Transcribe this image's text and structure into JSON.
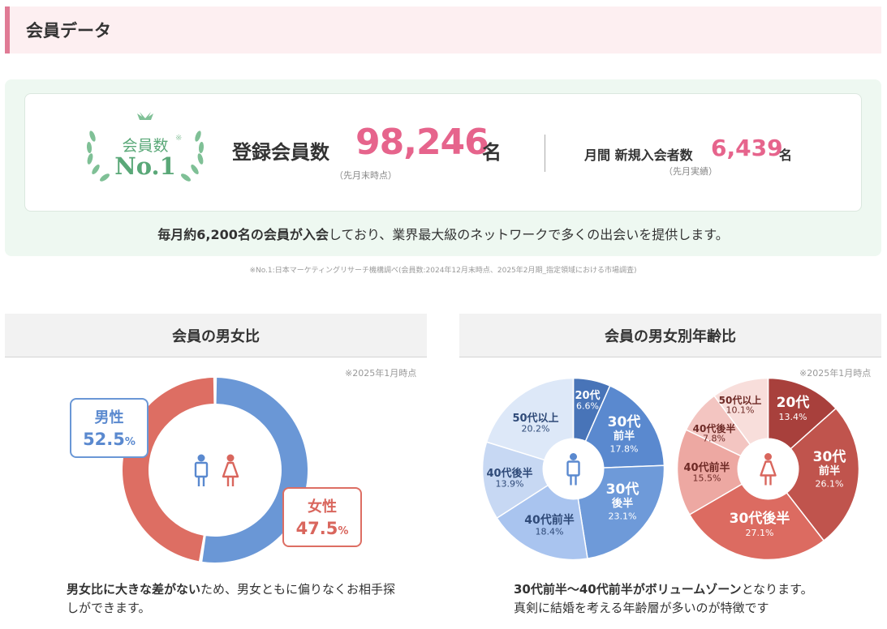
{
  "header": {
    "title": "会員データ"
  },
  "badge": {
    "top": "会員数",
    "main": "No.1",
    "mark": "※"
  },
  "registered": {
    "label": "登録会員数",
    "value": "98,246",
    "unit": "名",
    "note": "（先月末時点）"
  },
  "monthly_new": {
    "label": "月間 新規入会者数",
    "value": "6,439",
    "unit": "名",
    "note": "（先月実績）"
  },
  "summary": {
    "part1": "毎月約6,200名の会員が入会",
    "part2": "しており、業界最大級のネットワークで多くの出会いを提供します。"
  },
  "footnote": "※No.1:日本マーケティングリサーチ機構調べ(会員数:2024年12月末時点、2025年2月期_指定領域における市場調査)",
  "gender_panel": {
    "title": "会員の男女比",
    "as_of": "※2025年1月時点",
    "male_label": "男性",
    "male_value": "52.5",
    "male_unit": "%",
    "female_label": "女性",
    "female_value": "47.5",
    "female_unit": "%",
    "caption_bold": "男女比に大きな差がない",
    "caption_rest": "ため、男女ともに偏りなくお相手探しができます。"
  },
  "age_panel": {
    "title": "会員の男女別年齢比",
    "as_of": "※2025年1月時点",
    "caption_bold": "30代前半〜40代前半がボリュームゾーン",
    "caption_rest1": "となります。",
    "caption_line2": "真剣に結婚を考える年齢層が多いのが特徴です"
  },
  "colors": {
    "accent_pink": "#e6648c",
    "green": "#5aa878",
    "male": "#5a89cf",
    "female": "#d9665d"
  },
  "chart_data": [
    {
      "type": "pie",
      "title": "会員の男女比",
      "categories": [
        "男性",
        "女性"
      ],
      "values": [
        52.5,
        47.5
      ],
      "colors": [
        "#6a97d6",
        "#dd6e63"
      ],
      "style": "donut"
    },
    {
      "type": "pie",
      "title": "男性",
      "categories": [
        "20代",
        "30代前半",
        "30代後半",
        "40代前半",
        "40代後半",
        "50代以上"
      ],
      "values": [
        6.6,
        17.8,
        23.1,
        18.4,
        13.9,
        20.2
      ],
      "colors": [
        "#4874b8",
        "#5a89cf",
        "#6e9ad9",
        "#a9c4ef",
        "#c7d8f3",
        "#dde8f8"
      ],
      "labels": [
        {
          "name": "20代",
          "value": "6.6%"
        },
        {
          "name": "30代",
          "sub": "前半",
          "value": "17.8%"
        },
        {
          "name": "30代",
          "sub": "後半",
          "value": "23.1%"
        },
        {
          "name": "40代前半",
          "value": "18.4%"
        },
        {
          "name": "40代後半",
          "value": "13.9%"
        },
        {
          "name": "50代以上",
          "value": "20.2%"
        }
      ]
    },
    {
      "type": "pie",
      "title": "女性",
      "categories": [
        "20代",
        "30代前半",
        "30代後半",
        "40代前半",
        "40代後半",
        "50代以上"
      ],
      "values": [
        13.4,
        26.1,
        27.1,
        15.5,
        7.8,
        10.1
      ],
      "colors": [
        "#a8403c",
        "#c0544d",
        "#dc6b61",
        "#eda8a2",
        "#f3c5c1",
        "#f8dedb"
      ],
      "labels": [
        {
          "name": "20代",
          "value": "13.4%"
        },
        {
          "name": "30代",
          "sub": "前半",
          "value": "26.1%"
        },
        {
          "name": "30代後半",
          "value": "27.1%"
        },
        {
          "name": "40代前半",
          "value": "15.5%"
        },
        {
          "name": "40代後半",
          "value": "7.8%"
        },
        {
          "name": "50代以上",
          "value": "10.1%"
        }
      ]
    }
  ]
}
